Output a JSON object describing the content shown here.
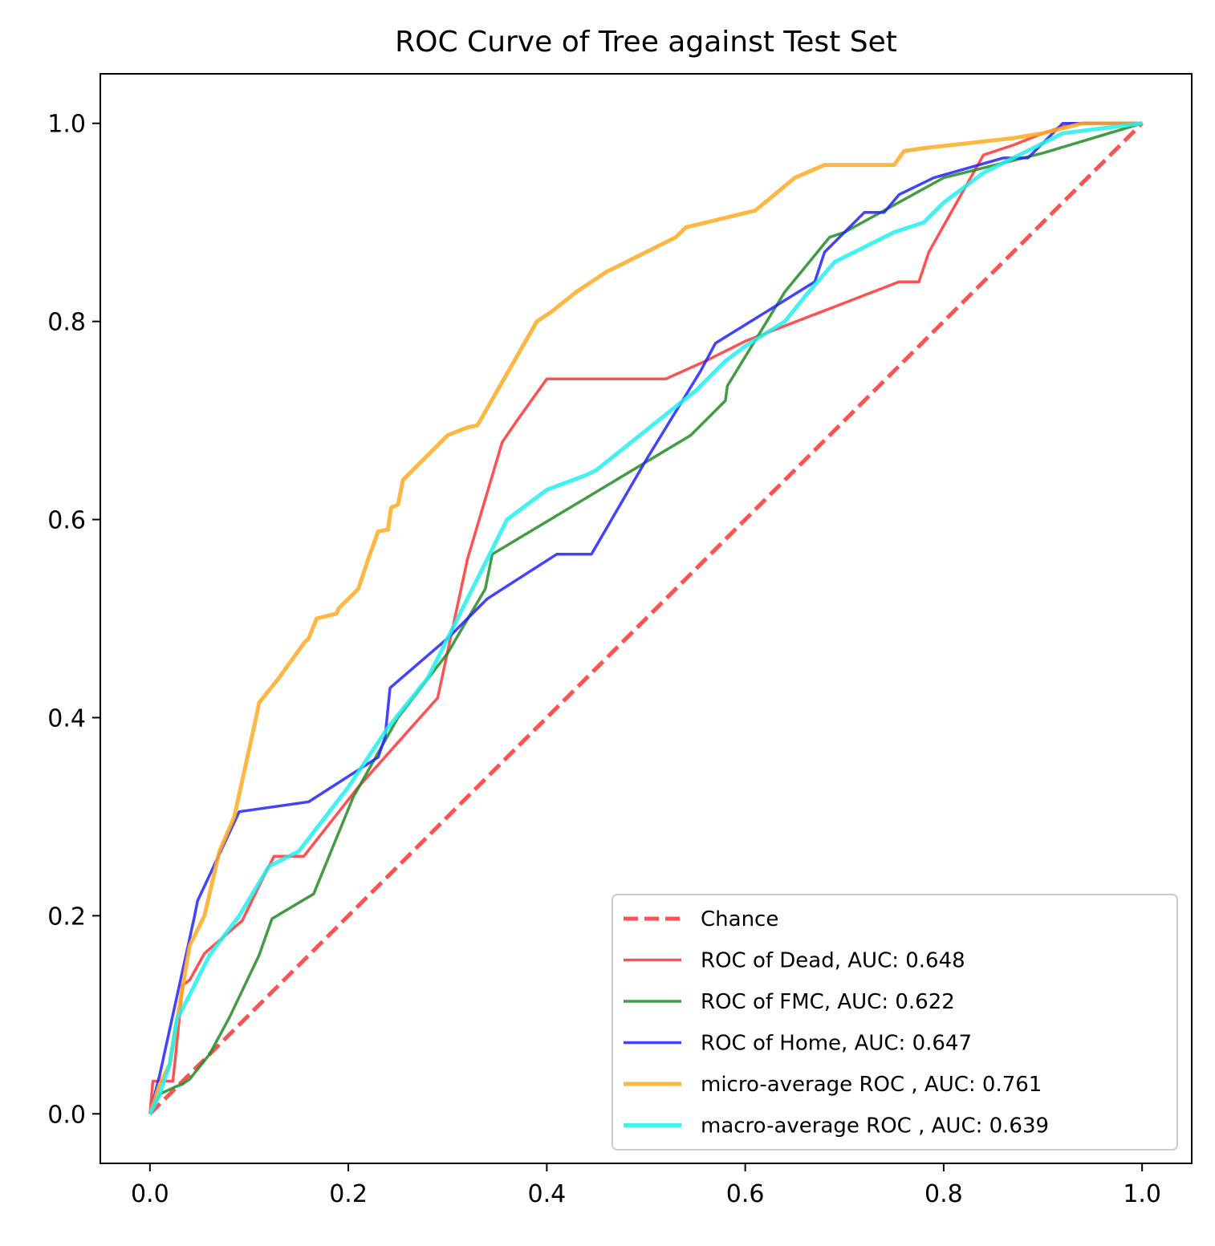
{
  "chart_data": {
    "type": "line",
    "title": "ROC Curve of Tree against Test Set",
    "xlabel": "",
    "ylabel": "",
    "xlim": [
      -0.05,
      1.05
    ],
    "ylim": [
      -0.05,
      1.05
    ],
    "x_ticks": [
      "0.0",
      "0.2",
      "0.4",
      "0.6",
      "0.8",
      "1.0"
    ],
    "y_ticks": [
      "0.0",
      "0.2",
      "0.4",
      "0.6",
      "0.8",
      "1.0"
    ],
    "legend_position": "lower-right",
    "grid": false,
    "series": [
      {
        "name": "Chance",
        "color": "#ff3333",
        "style": "dashed",
        "x": [
          0,
          1
        ],
        "y": [
          0,
          1
        ]
      },
      {
        "name": "ROC of Dead, AUC: 0.648",
        "color": "#ff3333",
        "style": "solid",
        "x": [
          0,
          0.003,
          0.023,
          0.025,
          0.033,
          0.04,
          0.055,
          0.07,
          0.093,
          0.11,
          0.125,
          0.155,
          0.21,
          0.29,
          0.32,
          0.355,
          0.37,
          0.4,
          0.52,
          0.56,
          0.6,
          0.755,
          0.775,
          0.785,
          0.84,
          0.87,
          0.9,
          0.93,
          1.0
        ],
        "y": [
          0,
          0.033,
          0.033,
          0.05,
          0.13,
          0.135,
          0.162,
          0.175,
          0.195,
          0.23,
          0.26,
          0.26,
          0.33,
          0.42,
          0.56,
          0.678,
          0.7,
          0.742,
          0.742,
          0.76,
          0.78,
          0.84,
          0.84,
          0.87,
          0.968,
          0.978,
          0.99,
          1.0,
          1.0
        ]
      },
      {
        "name": "ROC of FMC, AUC: 0.622",
        "color": "#228B22",
        "style": "solid",
        "x": [
          0,
          0.01,
          0.025,
          0.033,
          0.04,
          0.06,
          0.08,
          0.11,
          0.123,
          0.165,
          0.205,
          0.25,
          0.3,
          0.338,
          0.345,
          0.545,
          0.58,
          0.582,
          0.64,
          0.685,
          0.7,
          0.8,
          0.84,
          0.9,
          1.0
        ],
        "y": [
          0,
          0.02,
          0.027,
          0.03,
          0.035,
          0.06,
          0.097,
          0.16,
          0.197,
          0.222,
          0.32,
          0.4,
          0.465,
          0.53,
          0.565,
          0.685,
          0.72,
          0.735,
          0.83,
          0.885,
          0.89,
          0.945,
          0.955,
          0.97,
          1.0
        ]
      },
      {
        "name": "ROC of Home, AUC: 0.647",
        "color": "#2222ff",
        "style": "solid",
        "x": [
          0,
          0.01,
          0.045,
          0.048,
          0.09,
          0.16,
          0.23,
          0.237,
          0.242,
          0.3,
          0.34,
          0.41,
          0.445,
          0.5,
          0.555,
          0.57,
          0.67,
          0.68,
          0.71,
          0.72,
          0.74,
          0.755,
          0.79,
          0.86,
          0.885,
          0.9,
          0.92,
          0.935,
          1.0
        ],
        "y": [
          0,
          0.04,
          0.2,
          0.215,
          0.305,
          0.315,
          0.36,
          0.38,
          0.43,
          0.48,
          0.52,
          0.565,
          0.565,
          0.66,
          0.75,
          0.778,
          0.84,
          0.87,
          0.9,
          0.91,
          0.91,
          0.928,
          0.945,
          0.965,
          0.965,
          0.98,
          1.0,
          1.0,
          1.0
        ]
      },
      {
        "name": "micro-average ROC , AUC: 0.761",
        "color": "#ffaa22",
        "style": "solid",
        "x": [
          0,
          0.01,
          0.02,
          0.04,
          0.045,
          0.055,
          0.07,
          0.085,
          0.107,
          0.11,
          0.13,
          0.155,
          0.16,
          0.168,
          0.188,
          0.19,
          0.21,
          0.22,
          0.23,
          0.24,
          0.243,
          0.25,
          0.255,
          0.3,
          0.32,
          0.33,
          0.37,
          0.39,
          0.405,
          0.43,
          0.46,
          0.48,
          0.49,
          0.53,
          0.54,
          0.61,
          0.65,
          0.68,
          0.75,
          0.76,
          0.78,
          0.87,
          0.9,
          0.94,
          1.0
        ],
        "y": [
          0,
          0.03,
          0.05,
          0.17,
          0.18,
          0.2,
          0.265,
          0.3,
          0.4,
          0.415,
          0.44,
          0.475,
          0.48,
          0.5,
          0.505,
          0.51,
          0.53,
          0.56,
          0.588,
          0.59,
          0.612,
          0.615,
          0.64,
          0.685,
          0.693,
          0.695,
          0.765,
          0.8,
          0.81,
          0.83,
          0.85,
          0.86,
          0.865,
          0.885,
          0.895,
          0.912,
          0.945,
          0.958,
          0.958,
          0.972,
          0.975,
          0.985,
          0.99,
          1.0,
          1.0
        ]
      },
      {
        "name": "macro-average ROC , AUC: 0.639",
        "color": "#22eeee",
        "style": "solid",
        "x": [
          0,
          0.01,
          0.02,
          0.027,
          0.04,
          0.05,
          0.06,
          0.09,
          0.12,
          0.15,
          0.2,
          0.24,
          0.28,
          0.34,
          0.36,
          0.4,
          0.44,
          0.45,
          0.5,
          0.55,
          0.58,
          0.6,
          0.64,
          0.66,
          0.69,
          0.72,
          0.75,
          0.78,
          0.8,
          0.84,
          0.88,
          0.92,
          1.0
        ],
        "y": [
          0,
          0.02,
          0.05,
          0.095,
          0.12,
          0.14,
          0.16,
          0.2,
          0.25,
          0.265,
          0.33,
          0.39,
          0.44,
          0.56,
          0.6,
          0.63,
          0.645,
          0.65,
          0.69,
          0.73,
          0.76,
          0.775,
          0.8,
          0.825,
          0.86,
          0.875,
          0.89,
          0.9,
          0.92,
          0.95,
          0.97,
          0.99,
          1.0
        ]
      }
    ]
  }
}
